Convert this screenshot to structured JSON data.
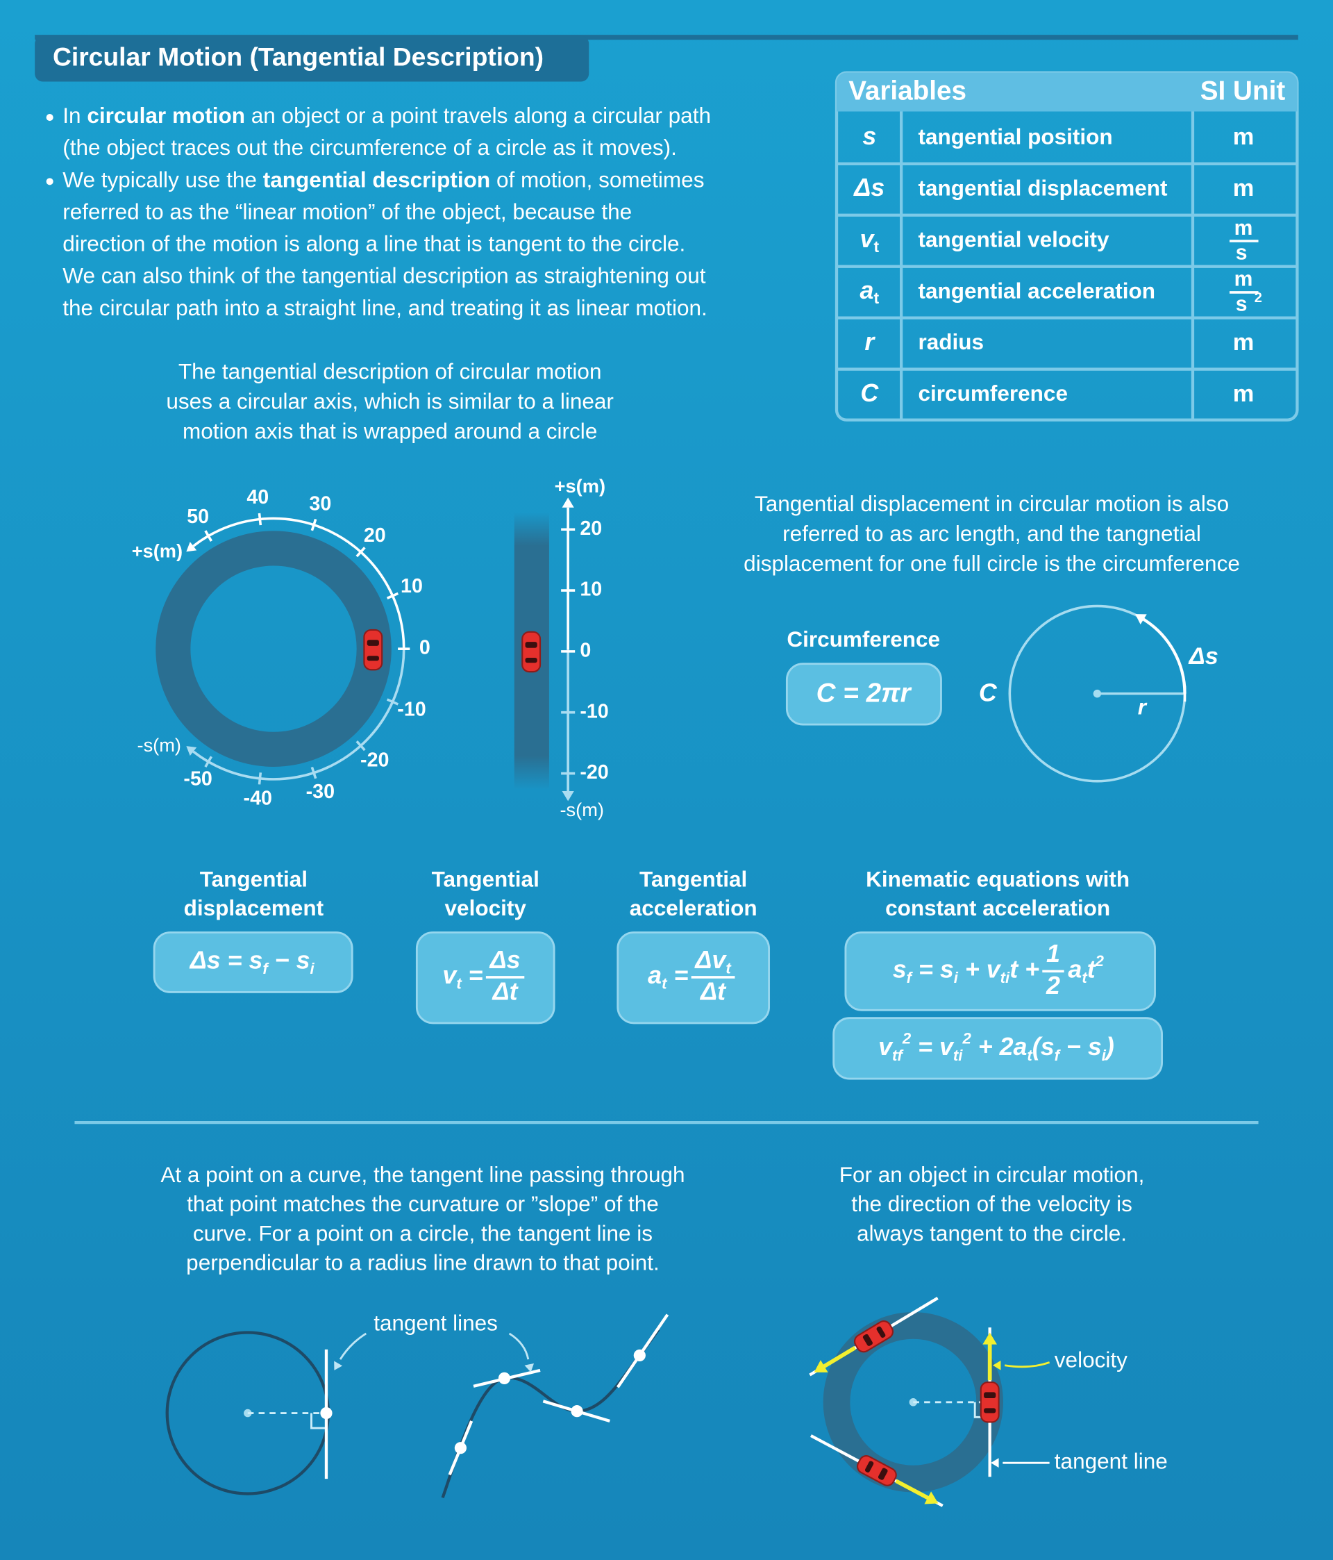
{
  "header": {
    "title": "Circular Motion (Tangential Description)"
  },
  "intro": {
    "lines": [
      [
        "In ",
        "circular motion",
        " an object or a point travels along a circular path"
      ],
      [
        "(the object traces out the circumference of a circle as it moves)."
      ],
      [
        "We typically use the ",
        "tangential description",
        " of motion, sometimes"
      ],
      [
        "referred to as the “linear motion” of the object, because the"
      ],
      [
        "direction of the motion is along a line that is tangent to the circle."
      ],
      [
        "We can also think of the tangential description as straightening out"
      ],
      [
        "the circular path into a straight line, and treating it as linear motion."
      ]
    ]
  },
  "variables_table": {
    "header": [
      "Variables",
      "SI Unit"
    ],
    "rows": [
      {
        "symbol": "s",
        "description": "tangential position",
        "unit": "m"
      },
      {
        "symbol": "Δs",
        "description": "tangential displacement",
        "unit": "m"
      },
      {
        "symbol": "v",
        "subscript": "t",
        "description": "tangential velocity",
        "unit": {
          "numerator": "m",
          "denominator": "s"
        }
      },
      {
        "symbol": "a",
        "subscript": "t",
        "description": "tangential acceleration",
        "unit": {
          "numerator": "m",
          "denominator": "s",
          "exponent": "2"
        }
      },
      {
        "symbol": "r",
        "description": "radius",
        "unit": "m"
      },
      {
        "symbol": "C",
        "description": "circumference",
        "unit": "m"
      }
    ]
  },
  "axis_section": {
    "caption": [
      "The tangential description of circular motion",
      "uses a circular axis, which is similar to a linear",
      "motion axis that is wrapped around a circle"
    ],
    "circular_axis": {
      "positive_label": "+s(m)",
      "negative_label": "-s(m)",
      "tick_labels": [
        "50",
        "40",
        "30",
        "20",
        "10",
        "0",
        "-10",
        "-20",
        "-30",
        "-40",
        "-50"
      ]
    },
    "linear_axis": {
      "positive_label": "+s(m)",
      "negative_label": "-s(m)",
      "tick_labels": [
        "20",
        "10",
        "0",
        "-10",
        "-20"
      ]
    }
  },
  "arc_section": {
    "caption": [
      "Tangential displacement in circular motion is also",
      "referred to as arc length, and the tangnetial",
      "displacement for one full circle is the circumference"
    ],
    "formula_title": "Circumference",
    "formula": "C = 2πr",
    "labels": {
      "circumference": "C",
      "radius": "r",
      "displacement": "Δs"
    }
  },
  "definitions": [
    {
      "title": [
        "Tangential",
        "displacement"
      ],
      "equation": [
        "Δs = s",
        "f",
        " − s",
        "i"
      ]
    },
    {
      "title": [
        "Tangential",
        "velocity"
      ],
      "equation": [
        "v",
        "t",
        " = ",
        "Δs",
        "Δt"
      ]
    },
    {
      "title": [
        "Tangential",
        "acceleration"
      ],
      "equation": [
        "a",
        "t",
        " = ",
        "Δv",
        "t",
        "Δt"
      ]
    }
  ],
  "kinematics": {
    "title": [
      "Kinematic equations with",
      "constant acceleration"
    ],
    "equations": [
      [
        "s",
        "f",
        " = s",
        "i",
        " + v",
        "ti",
        "t + ",
        "1",
        "2",
        "a",
        "t",
        "t",
        "2"
      ],
      [
        "v",
        "tf",
        "2",
        " = v",
        "ti",
        "2",
        " + 2a",
        "t",
        "(s",
        "f",
        " − s",
        "i",
        ")"
      ]
    ]
  },
  "tangent_section": {
    "caption": [
      "At a point on a curve, the tangent line passing through",
      "that point matches the curvature or ”slope” of the",
      "curve. For a point on a circle, the tangent line is",
      "perpendicular to a radius line drawn to that point."
    ],
    "label": "tangent lines"
  },
  "velocity_section": {
    "caption": [
      "For an object in circular motion,",
      "the direction of the velocity is",
      "always tangent to the circle."
    ],
    "velocity_label": "velocity",
    "tangent_label": "tangent line"
  }
}
